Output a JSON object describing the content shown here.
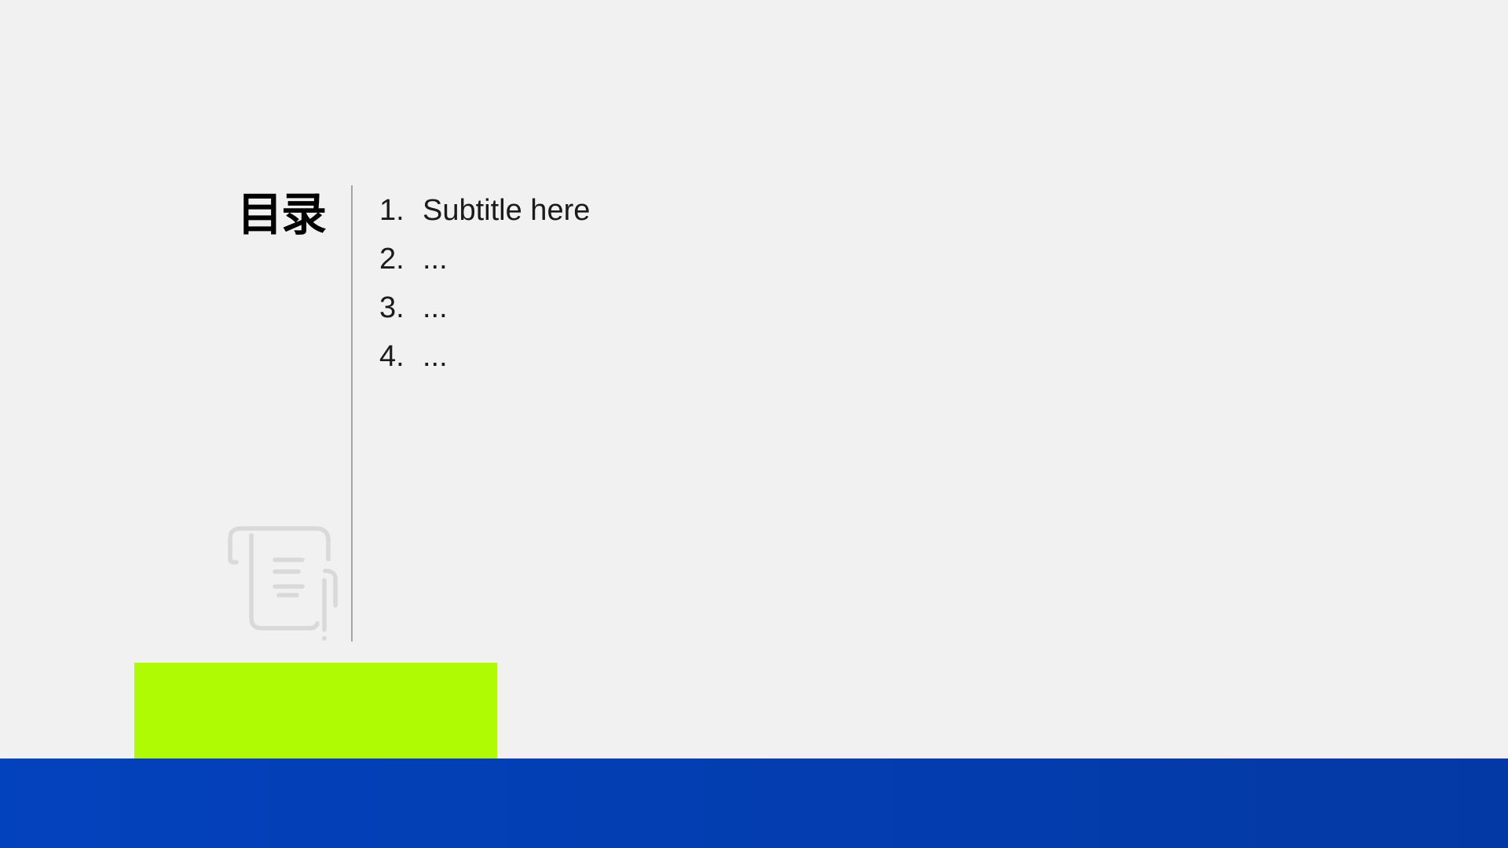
{
  "slide": {
    "title": "目录",
    "toc": {
      "items": [
        {
          "number": "1.",
          "label": "Subtitle here"
        },
        {
          "number": "2.",
          "label": "..."
        },
        {
          "number": "3.",
          "label": "..."
        },
        {
          "number": "4.",
          "label": "..."
        }
      ]
    },
    "decor": {
      "icon": "scroll-pen-icon"
    },
    "colors": {
      "background": "#f1f1f2",
      "accent_green": "#aefb03",
      "bar_blue_left": "#0342bd",
      "bar_blue_right": "#0339a4",
      "divider": "#a4a4a4",
      "icon": "#d9d9d9",
      "text": "#1b1b1b",
      "title": "#000000"
    }
  }
}
